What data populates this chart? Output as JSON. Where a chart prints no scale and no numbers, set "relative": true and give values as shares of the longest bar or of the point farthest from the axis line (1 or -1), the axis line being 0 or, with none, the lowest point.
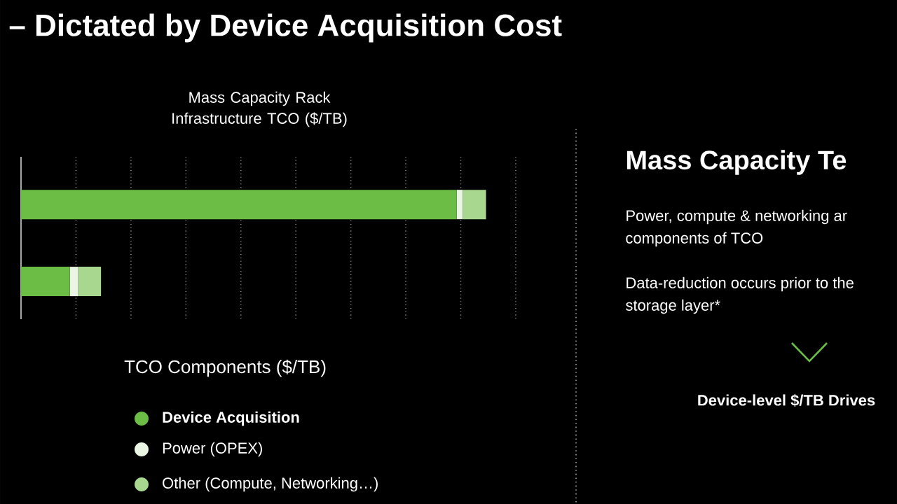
{
  "chart_data": {
    "type": "bar",
    "orientation": "horizontal",
    "stacked": true,
    "relative": true,
    "title": "Mass Capacity Rack Infrastructure TCO ($/TB)",
    "legend_title": "TCO Components ($/TB)",
    "categories": [
      null,
      null
    ],
    "series": [
      {
        "name": "Device Acquisition",
        "color": "#6cbd45",
        "values": [
          0.937,
          0.105
        ]
      },
      {
        "name": "Power (OPEX)",
        "color": "#eaf5e4",
        "values": [
          0.013,
          0.018
        ]
      },
      {
        "name": "Other  (Compute, Networking…)",
        "color": "#a8d88f",
        "values": [
          0.05,
          0.049
        ]
      }
    ],
    "grid": "x",
    "legend": "bottom",
    "marker": "circle",
    "annotations": [
      "– Dictated by Device Acquisition Cost",
      "Mass Capacity Te",
      "Power, compute & networking ar",
      "components of TCO",
      "Data-reduction occurs prior to the",
      "storage layer*",
      "Device-level $/TB Drives"
    ]
  }
}
